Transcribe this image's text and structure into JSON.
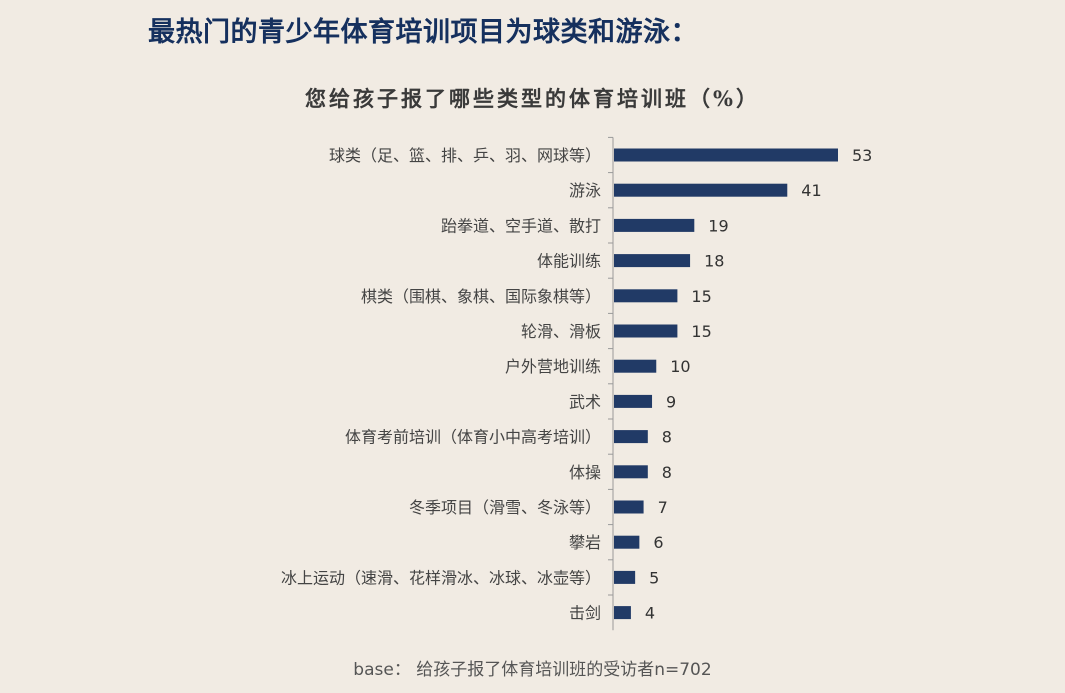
{
  "headline": "最热门的青少年体育培训项目为球类和游泳：",
  "footnote": "base：  给孩子报了体育培训班的受访者n=702",
  "colors": {
    "bar": "#213a66",
    "background": "#f1ebe3",
    "headline": "#15305e",
    "axis": "#9a9a9a"
  },
  "chart_data": {
    "type": "bar",
    "orientation": "horizontal",
    "title": "您给孩子报了哪些类型的体育培训班（%）",
    "xlabel": "",
    "ylabel": "",
    "xlim": [
      0,
      53
    ],
    "grid": false,
    "legend": "none",
    "data_labels": true,
    "categories": [
      "球类（足、篮、排、乒、羽、网球等）",
      "游泳",
      "跆拳道、空手道、散打",
      "体能训练",
      "棋类（围棋、象棋、国际象棋等）",
      "轮滑、滑板",
      "户外营地训练",
      "武术",
      "体育考前培训（体育小中高考培训）",
      "体操",
      "冬季项目（滑雪、冬泳等）",
      "攀岩",
      "冰上运动（速滑、花样滑冰、冰球、冰壶等）",
      "击剑"
    ],
    "values": [
      53,
      41,
      19,
      18,
      15,
      15,
      10,
      9,
      8,
      8,
      7,
      6,
      5,
      4
    ]
  }
}
